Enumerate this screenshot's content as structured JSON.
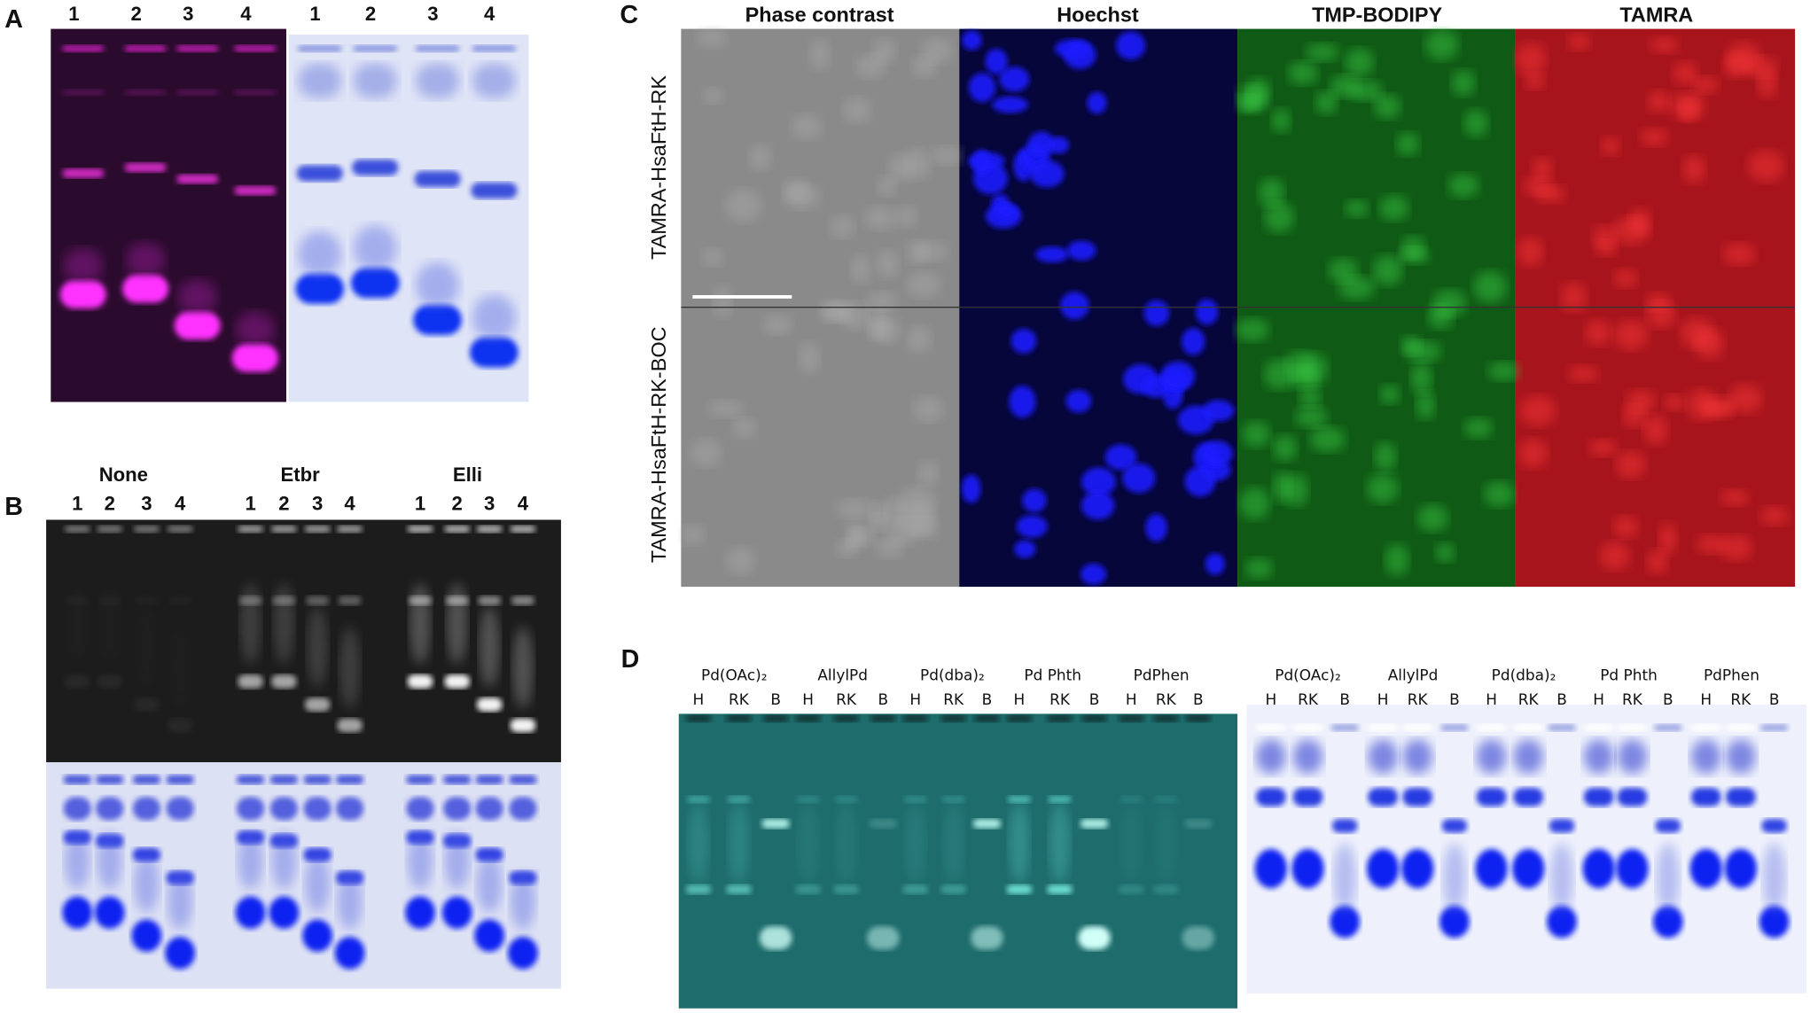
{
  "panel_a": {
    "label": "A",
    "lanes_left": [
      "1",
      "2",
      "3",
      "4"
    ],
    "lanes_right": [
      "1",
      "2",
      "3",
      "4"
    ]
  },
  "panel_b": {
    "label": "B",
    "groups": [
      {
        "name": "None",
        "lanes": [
          "1",
          "2",
          "3",
          "4"
        ]
      },
      {
        "name": "Etbr",
        "lanes": [
          "1",
          "2",
          "3",
          "4"
        ]
      },
      {
        "name": "Elli",
        "lanes": [
          "1",
          "2",
          "3",
          "4"
        ]
      }
    ]
  },
  "panel_c": {
    "label": "C",
    "columns": [
      "Phase contrast",
      "Hoechst",
      "TMP-BODIPY",
      "TAMRA"
    ],
    "rows": [
      "TAMRA-HsaFtH-RK",
      "TAMRA-HsaFtH-RK-BOC"
    ]
  },
  "panel_d": {
    "label": "D",
    "gels": [
      {
        "groups": [
          {
            "name": "Pd(OAc)₂",
            "lanes": [
              "H",
              "RK",
              "B"
            ]
          },
          {
            "name": "AllylPd",
            "lanes": [
              "H",
              "RK",
              "B"
            ]
          },
          {
            "name": "Pd(dba)₂",
            "lanes": [
              "H",
              "RK",
              "B"
            ]
          },
          {
            "name": "Pd Phth",
            "lanes": [
              "H",
              "RK",
              "B"
            ]
          },
          {
            "name": "PdPhen",
            "lanes": [
              "H",
              "RK",
              "B"
            ]
          }
        ]
      },
      {
        "groups": [
          {
            "name": "Pd(OAc)₂",
            "lanes": [
              "H",
              "RK",
              "B"
            ]
          },
          {
            "name": "AllylPd",
            "lanes": [
              "H",
              "RK",
              "B"
            ]
          },
          {
            "name": "Pd(dba)₂",
            "lanes": [
              "H",
              "RK",
              "B"
            ]
          },
          {
            "name": "Pd Phth",
            "lanes": [
              "H",
              "RK",
              "B"
            ]
          },
          {
            "name": "PdPhen",
            "lanes": [
              "H",
              "RK",
              "B"
            ]
          }
        ]
      }
    ]
  }
}
